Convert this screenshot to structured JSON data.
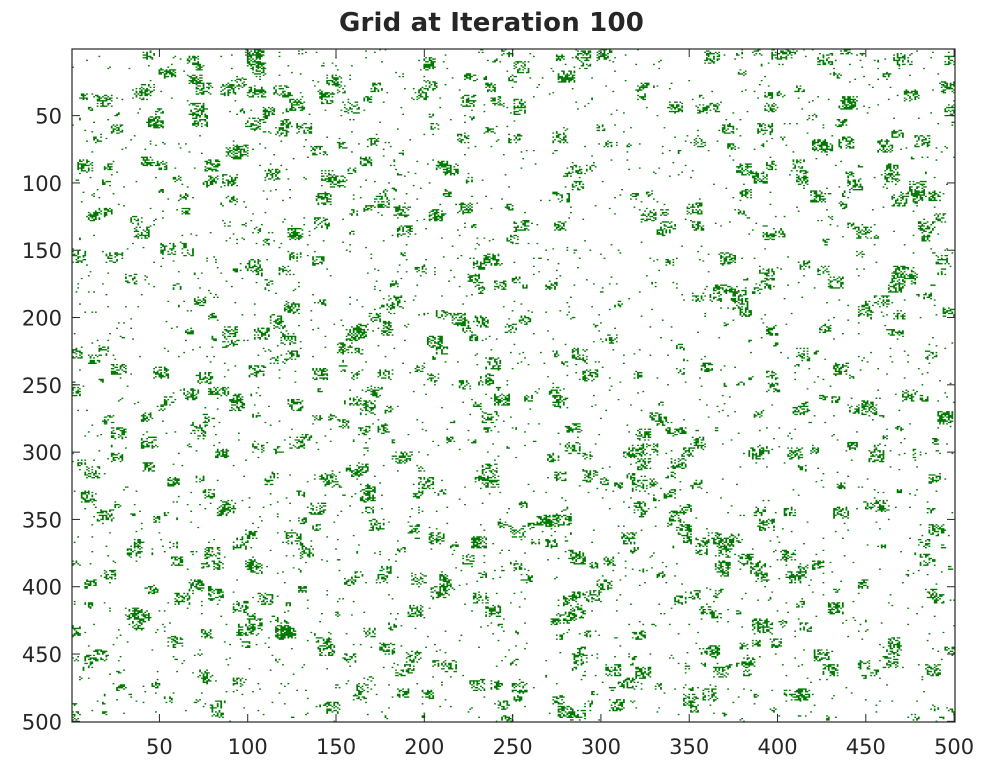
{
  "chart_data": {
    "type": "heatmap",
    "title": "Grid at Iteration 100",
    "xlabel": "",
    "ylabel": "",
    "xlim": [
      1,
      500
    ],
    "ylim": [
      1,
      500
    ],
    "y_reversed": true,
    "grid_size": [
      500,
      500
    ],
    "x_ticks": [
      50,
      100,
      150,
      200,
      250,
      300,
      350,
      400,
      450,
      500
    ],
    "y_ticks": [
      50,
      100,
      150,
      200,
      250,
      300,
      350,
      400,
      450,
      500
    ],
    "live_cell_color": "#007a00",
    "dead_cell_color": "#ffffff",
    "axis_color": "#262626",
    "grid": false
  }
}
